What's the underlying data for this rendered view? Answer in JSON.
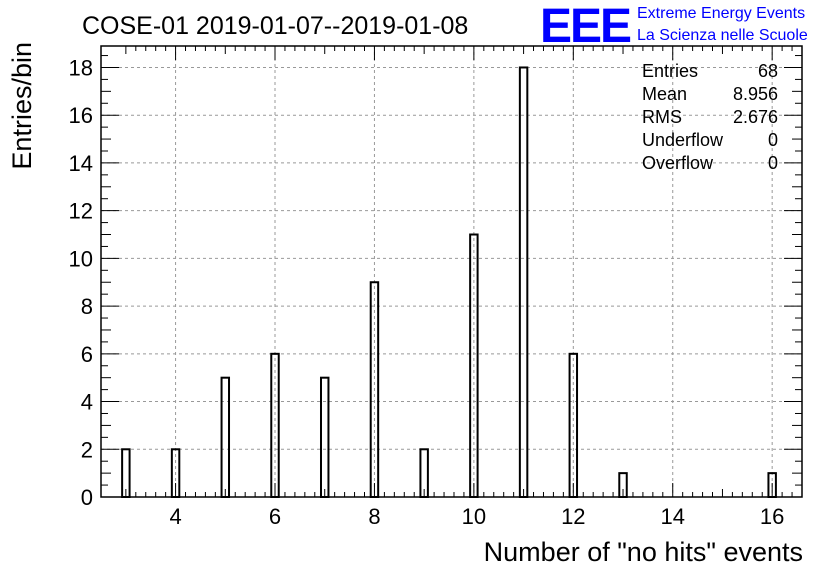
{
  "header": {
    "title": "COSE-01 2019-01-07--2019-01-08",
    "logo_letters": "EEE",
    "logo_line1": "Extreme Energy Events",
    "logo_line2": "La Scienza nelle Scuole",
    "logo_color": "#0000ff"
  },
  "stats": {
    "rows": [
      {
        "label": "Entries",
        "value": "68"
      },
      {
        "label": "Mean",
        "value": "8.956"
      },
      {
        "label": "RMS",
        "value": "2.676"
      },
      {
        "label": "Underflow",
        "value": "0"
      },
      {
        "label": "Overflow",
        "value": "0"
      }
    ]
  },
  "chart_data": {
    "type": "bar",
    "title": "COSE-01 2019-01-07--2019-01-08",
    "xlabel": "Number of \"no hits\" events",
    "ylabel": "Entries/bin",
    "xlim": [
      2.5,
      16.6
    ],
    "ylim": [
      0,
      18.9
    ],
    "grid": true,
    "bar_width": 0.15,
    "x": [
      3,
      4,
      5,
      6,
      7,
      8,
      9,
      10,
      11,
      12,
      13,
      16
    ],
    "values": [
      2,
      2,
      5,
      6,
      5,
      9,
      2,
      11,
      18,
      6,
      1,
      1
    ],
    "xticks": [
      4,
      6,
      8,
      10,
      12,
      14,
      16
    ],
    "yticks": [
      0,
      2,
      4,
      6,
      8,
      10,
      12,
      14,
      16,
      18
    ],
    "bar_color": "#000000",
    "grid_color": "#999999"
  }
}
